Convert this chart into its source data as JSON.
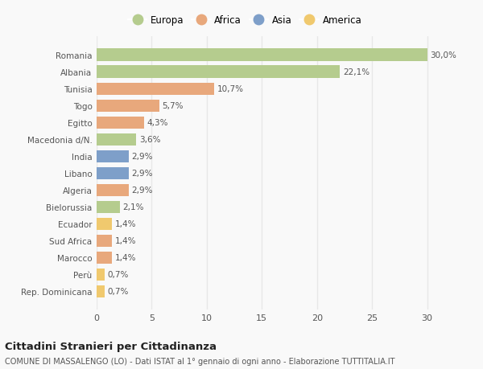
{
  "countries": [
    "Romania",
    "Albania",
    "Tunisia",
    "Togo",
    "Egitto",
    "Macedonia d/N.",
    "India",
    "Libano",
    "Algeria",
    "Bielorussia",
    "Ecuador",
    "Sud Africa",
    "Marocco",
    "Perù",
    "Rep. Dominicana"
  ],
  "values": [
    30.0,
    22.1,
    10.7,
    5.7,
    4.3,
    3.6,
    2.9,
    2.9,
    2.9,
    2.1,
    1.4,
    1.4,
    1.4,
    0.7,
    0.7
  ],
  "labels": [
    "30,0%",
    "22,1%",
    "10,7%",
    "5,7%",
    "4,3%",
    "3,6%",
    "2,9%",
    "2,9%",
    "2,9%",
    "2,1%",
    "1,4%",
    "1,4%",
    "1,4%",
    "0,7%",
    "0,7%"
  ],
  "categories": [
    "Europa",
    "Europa",
    "Africa",
    "Africa",
    "Africa",
    "Europa",
    "Asia",
    "Asia",
    "Africa",
    "Europa",
    "America",
    "Africa",
    "Africa",
    "America",
    "America"
  ],
  "colors": {
    "Europa": "#b5cc8e",
    "Africa": "#e8a87c",
    "Asia": "#7e9fc9",
    "America": "#f0c96e"
  },
  "legend_order": [
    "Europa",
    "Africa",
    "Asia",
    "America"
  ],
  "title": "Cittadini Stranieri per Cittadinanza",
  "subtitle": "COMUNE DI MASSALENGO (LO) - Dati ISTAT al 1° gennaio di ogni anno - Elaborazione TUTTITALIA.IT",
  "xlim": [
    0,
    32
  ],
  "background_color": "#f9f9f9",
  "plot_bg_color": "#f9f9f9",
  "grid_color": "#e8e8e8",
  "bar_height": 0.72
}
